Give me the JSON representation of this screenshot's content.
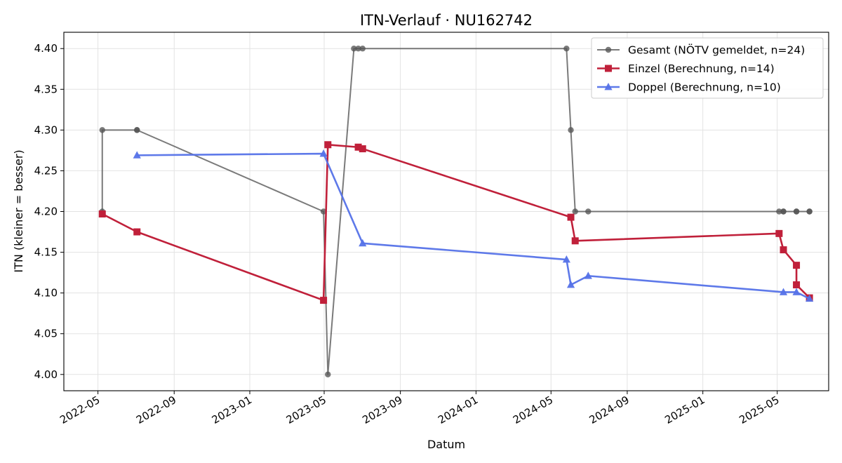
{
  "chart_data": {
    "type": "line",
    "title": "ITN-Verlauf · NU162742",
    "xlabel": "Datum",
    "ylabel": "ITN  (kleiner = besser)",
    "x_axis_type": "date",
    "xlim": [
      "2022-03-07",
      "2025-07-23"
    ],
    "ylim": [
      3.98,
      4.42
    ],
    "xticks": [
      "2022-05-01",
      "2022-09-01",
      "2023-01-01",
      "2023-05-01",
      "2023-09-01",
      "2024-01-01",
      "2024-05-01",
      "2024-09-01",
      "2025-01-01",
      "2025-05-01"
    ],
    "xtick_labels": [
      "2022-05",
      "2022-09",
      "2023-01",
      "2023-05",
      "2023-09",
      "2024-01",
      "2024-05",
      "2024-09",
      "2025-01",
      "2025-05"
    ],
    "yticks": [
      4.0,
      4.05,
      4.1,
      4.15,
      4.2,
      4.25,
      4.3,
      4.35,
      4.4
    ],
    "ytick_labels": [
      "4.00",
      "4.05",
      "4.10",
      "4.15",
      "4.20",
      "4.25",
      "4.30",
      "4.35",
      "4.40"
    ],
    "grid": true,
    "legend_position": "top-right",
    "series": [
      {
        "name": "Gesamt (NÖTV gemeldet, n=24)",
        "color": "#555555",
        "marker": "circle",
        "points": [
          {
            "x": "2022-05-08",
            "y": 4.2
          },
          {
            "x": "2022-05-08",
            "y": 4.3
          },
          {
            "x": "2022-07-03",
            "y": 4.3
          },
          {
            "x": "2022-07-03",
            "y": 4.3
          },
          {
            "x": "2023-04-30",
            "y": 4.2
          },
          {
            "x": "2023-05-07",
            "y": 4.0
          },
          {
            "x": "2023-06-18",
            "y": 4.4
          },
          {
            "x": "2023-06-25",
            "y": 4.4
          },
          {
            "x": "2023-07-02",
            "y": 4.4
          },
          {
            "x": "2024-05-26",
            "y": 4.4
          },
          {
            "x": "2024-06-02",
            "y": 4.3
          },
          {
            "x": "2024-06-09",
            "y": 4.2
          },
          {
            "x": "2024-06-30",
            "y": 4.2
          },
          {
            "x": "2025-05-04",
            "y": 4.2
          },
          {
            "x": "2025-05-11",
            "y": 4.2
          },
          {
            "x": "2025-05-11",
            "y": 4.2
          },
          {
            "x": "2025-06-01",
            "y": 4.2
          },
          {
            "x": "2025-06-01",
            "y": 4.2
          },
          {
            "x": "2025-06-22",
            "y": 4.2
          },
          {
            "x": "2025-06-22",
            "y": 4.2
          }
        ]
      },
      {
        "name": "Einzel (Berechnung, n=14)",
        "color": "#c0203a",
        "marker": "square",
        "points": [
          {
            "x": "2022-05-08",
            "y": 4.197
          },
          {
            "x": "2022-07-03",
            "y": 4.175
          },
          {
            "x": "2023-04-30",
            "y": 4.091
          },
          {
            "x": "2023-05-07",
            "y": 4.282
          },
          {
            "x": "2023-06-25",
            "y": 4.279
          },
          {
            "x": "2023-07-02",
            "y": 4.277
          },
          {
            "x": "2024-06-02",
            "y": 4.193
          },
          {
            "x": "2024-06-09",
            "y": 4.164
          },
          {
            "x": "2025-05-04",
            "y": 4.173
          },
          {
            "x": "2025-05-11",
            "y": 4.153
          },
          {
            "x": "2025-06-01",
            "y": 4.134
          },
          {
            "x": "2025-06-01",
            "y": 4.11
          },
          {
            "x": "2025-06-22",
            "y": 4.094
          }
        ]
      },
      {
        "name": "Doppel (Berechnung, n=10)",
        "color": "#5572e8",
        "marker": "triangle",
        "points": [
          {
            "x": "2022-07-03",
            "y": 4.269
          },
          {
            "x": "2023-04-30",
            "y": 4.271
          },
          {
            "x": "2023-07-02",
            "y": 4.161
          },
          {
            "x": "2024-05-26",
            "y": 4.141
          },
          {
            "x": "2024-06-02",
            "y": 4.11
          },
          {
            "x": "2024-06-30",
            "y": 4.121
          },
          {
            "x": "2025-05-11",
            "y": 4.101
          },
          {
            "x": "2025-06-01",
            "y": 4.101
          },
          {
            "x": "2025-06-22",
            "y": 4.093
          }
        ]
      }
    ]
  }
}
